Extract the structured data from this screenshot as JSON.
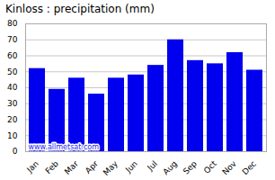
{
  "chart_data": {
    "type": "bar",
    "title": "Kinloss : precipitation (mm)",
    "categories": [
      "Jan",
      "Feb",
      "Mar",
      "Apr",
      "May",
      "Jun",
      "Jul",
      "Aug",
      "Sep",
      "Oct",
      "Nov",
      "Dec"
    ],
    "values": [
      52,
      39,
      46,
      36,
      46,
      48,
      54,
      70,
      57,
      55,
      62,
      51
    ],
    "color": "#0000EE",
    "ylim": [
      0,
      80
    ],
    "yticks": [
      0,
      10,
      20,
      30,
      40,
      50,
      60,
      70,
      80
    ],
    "grid": true,
    "annotations": [
      "www.allmetsat.com"
    ]
  }
}
